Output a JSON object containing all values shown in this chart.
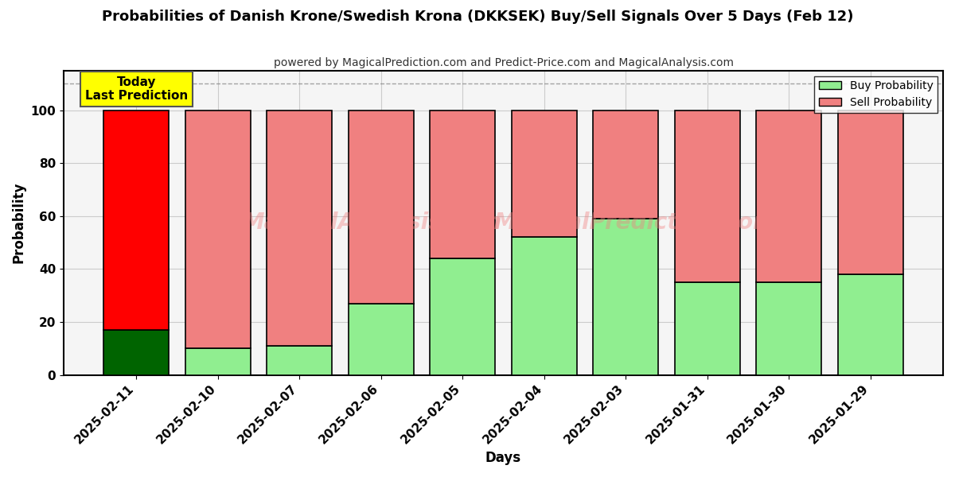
{
  "title": "Probabilities of Danish Krone/Swedish Krona (DKKSEK) Buy/Sell Signals Over 5 Days (Feb 12)",
  "subtitle": "powered by MagicalPrediction.com and Predict-Price.com and MagicalAnalysis.com",
  "xlabel": "Days",
  "ylabel": "Probability",
  "categories": [
    "2025-02-11",
    "2025-02-10",
    "2025-02-07",
    "2025-02-06",
    "2025-02-05",
    "2025-02-04",
    "2025-02-03",
    "2025-01-31",
    "2025-01-30",
    "2025-01-29"
  ],
  "buy_values": [
    17,
    10,
    11,
    27,
    44,
    52,
    59,
    35,
    35,
    38
  ],
  "sell_values": [
    83,
    90,
    89,
    73,
    56,
    48,
    41,
    65,
    65,
    62
  ],
  "today_index": 0,
  "today_buy_color": "#006400",
  "today_sell_color": "#FF0000",
  "normal_buy_color": "#90EE90",
  "normal_sell_color": "#F08080",
  "today_label_bg": "#FFFF00",
  "today_label_text": "Today\nLast Prediction",
  "legend_buy_label": "Buy Probability",
  "legend_sell_label": "Sell Probability",
  "ylim": [
    0,
    115
  ],
  "yticks": [
    0,
    20,
    40,
    60,
    80,
    100
  ],
  "watermark_text1": "MagicalAnalysis.com",
  "watermark_text2": "MagicalPrediction.com",
  "background_color": "#ffffff",
  "bar_edge_color": "#000000"
}
